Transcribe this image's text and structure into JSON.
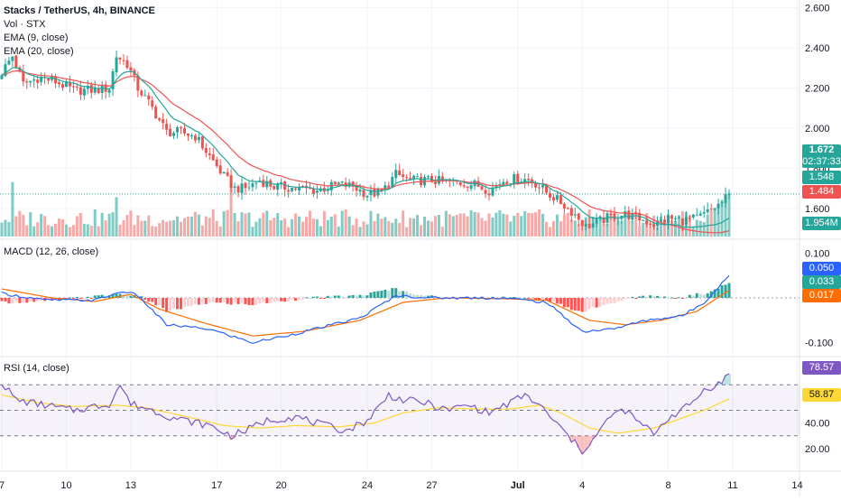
{
  "legend": {
    "symbol_line": "Stacks / TetherUS, 4h, BINANCE",
    "vol_label": "Vol · STX",
    "ema9_label": "EMA (9, close)",
    "ema20_label": "EMA (20, close)",
    "macd_label": "MACD (12, 26, close)",
    "rsi_label": "RSI (14, close)"
  },
  "badges": {
    "price": "1.672",
    "countdown": "02:37:33",
    "ema9": "1.548",
    "ema20": "1.484",
    "volume": "1.954M",
    "macd_line": "0.050",
    "macd_hist": "0.033",
    "macd_signal": "0.017",
    "rsi": "78.57",
    "rsi_ma": "58.87"
  },
  "colors": {
    "up": "#26a69a",
    "down": "#ef5350",
    "ema9": "#26a69a",
    "ema20": "#ef5350",
    "macd": "#2962ff",
    "signal": "#ff6d00",
    "rsi": "#7e57c2",
    "rsi_ma": "#fdd835",
    "volume_badge": "#26a69a"
  },
  "chart_data": [
    {
      "type": "candlestick",
      "title": "Stacks / TetherUS, 4h, BINANCE",
      "ylim": [
        1.46,
        2.63
      ],
      "y_ticks": [
        "2.600",
        "2.400",
        "2.200",
        "2.000",
        "1.800",
        "1.600"
      ],
      "x_ticks": [
        "7",
        "10",
        "13",
        "17",
        "20",
        "24",
        "27",
        "Jul",
        "4",
        "8",
        "11",
        "14"
      ],
      "current_price": 1.672,
      "anchors": [
        [
          0,
          2.28
        ],
        [
          3,
          2.36
        ],
        [
          6,
          2.22
        ],
        [
          10,
          2.25
        ],
        [
          14,
          2.24
        ],
        [
          20,
          2.19
        ],
        [
          26,
          2.19
        ],
        [
          30,
          2.2
        ],
        [
          32,
          2.36
        ],
        [
          35,
          2.32
        ],
        [
          38,
          2.2
        ],
        [
          42,
          2.1
        ],
        [
          46,
          1.98
        ],
        [
          50,
          1.98
        ],
        [
          54,
          1.96
        ],
        [
          58,
          1.86
        ],
        [
          62,
          1.76
        ],
        [
          65,
          1.7
        ],
        [
          68,
          1.7
        ],
        [
          72,
          1.74
        ],
        [
          76,
          1.71
        ],
        [
          82,
          1.7
        ],
        [
          88,
          1.69
        ],
        [
          94,
          1.72
        ],
        [
          98,
          1.71
        ],
        [
          102,
          1.67
        ],
        [
          106,
          1.68
        ],
        [
          110,
          1.77
        ],
        [
          114,
          1.74
        ],
        [
          120,
          1.74
        ],
        [
          126,
          1.73
        ],
        [
          132,
          1.72
        ],
        [
          136,
          1.69
        ],
        [
          140,
          1.74
        ],
        [
          144,
          1.75
        ],
        [
          148,
          1.74
        ],
        [
          152,
          1.68
        ],
        [
          156,
          1.63
        ],
        [
          160,
          1.57
        ],
        [
          163,
          1.51
        ],
        [
          166,
          1.53
        ],
        [
          170,
          1.56
        ],
        [
          174,
          1.57
        ],
        [
          178,
          1.55
        ],
        [
          182,
          1.52
        ],
        [
          186,
          1.55
        ],
        [
          190,
          1.54
        ],
        [
          194,
          1.55
        ],
        [
          198,
          1.59
        ],
        [
          201,
          1.63
        ],
        [
          203,
          1.672
        ]
      ],
      "ema9_last": 1.548,
      "ema20_last": 1.484
    },
    {
      "type": "bar",
      "title": "Vol · STX",
      "last_value": "1.954M",
      "spikes": [
        [
          3,
          0.9
        ],
        [
          32,
          0.65
        ],
        [
          64,
          0.95
        ]
      ]
    },
    {
      "type": "line",
      "title": "MACD (12, 26, close)",
      "ylim": [
        -0.125,
        0.125
      ],
      "y_ticks": [
        "0.100",
        "-0.100"
      ],
      "series": [
        {
          "name": "MACD",
          "anchors": [
            [
              0,
              0.01
            ],
            [
              12,
              -0.005
            ],
            [
              26,
              -0.005
            ],
            [
              34,
              0.015
            ],
            [
              38,
              0.005
            ],
            [
              46,
              -0.06
            ],
            [
              58,
              -0.07
            ],
            [
              70,
              -0.1
            ],
            [
              82,
              -0.08
            ],
            [
              100,
              -0.045
            ],
            [
              110,
              0.005
            ],
            [
              120,
              0.0
            ],
            [
              140,
              0.0
            ],
            [
              152,
              -0.01
            ],
            [
              162,
              -0.075
            ],
            [
              170,
              -0.07
            ],
            [
              180,
              -0.05
            ],
            [
              190,
              -0.04
            ],
            [
              196,
              -0.01
            ],
            [
              203,
              0.05
            ]
          ]
        },
        {
          "name": "Signal",
          "anchors": [
            [
              0,
              0.02
            ],
            [
              14,
              0.0
            ],
            [
              26,
              -0.008
            ],
            [
              36,
              0.008
            ],
            [
              44,
              -0.025
            ],
            [
              56,
              -0.055
            ],
            [
              70,
              -0.085
            ],
            [
              84,
              -0.075
            ],
            [
              100,
              -0.05
            ],
            [
              112,
              -0.01
            ],
            [
              124,
              0.0
            ],
            [
              140,
              -0.002
            ],
            [
              152,
              -0.005
            ],
            [
              164,
              -0.05
            ],
            [
              174,
              -0.06
            ],
            [
              184,
              -0.05
            ],
            [
              194,
              -0.03
            ],
            [
              203,
              0.017
            ]
          ]
        }
      ],
      "last_values": {
        "macd": 0.05,
        "histogram": 0.033,
        "signal": 0.017
      }
    },
    {
      "type": "line",
      "title": "RSI (14, close)",
      "ylim": [
        5,
        90
      ],
      "y_ticks": [
        "40.00",
        "20.00"
      ],
      "bands": [
        30,
        50,
        70
      ],
      "series": [
        {
          "name": "RSI",
          "anchors": [
            [
              0,
              72
            ],
            [
              4,
              58
            ],
            [
              10,
              55
            ],
            [
              20,
              50
            ],
            [
              30,
              55
            ],
            [
              33,
              70
            ],
            [
              36,
              55
            ],
            [
              40,
              52
            ],
            [
              48,
              44
            ],
            [
              58,
              38
            ],
            [
              64,
              30
            ],
            [
              68,
              34
            ],
            [
              74,
              42
            ],
            [
              82,
              45
            ],
            [
              90,
              38
            ],
            [
              96,
              34
            ],
            [
              102,
              42
            ],
            [
              108,
              62
            ],
            [
              112,
              58
            ],
            [
              118,
              56
            ],
            [
              124,
              50
            ],
            [
              130,
              54
            ],
            [
              136,
              48
            ],
            [
              142,
              56
            ],
            [
              146,
              62
            ],
            [
              150,
              54
            ],
            [
              154,
              42
            ],
            [
              158,
              30
            ],
            [
              162,
              18
            ],
            [
              166,
              30
            ],
            [
              170,
              46
            ],
            [
              174,
              50
            ],
            [
              178,
              40
            ],
            [
              182,
              32
            ],
            [
              186,
              44
            ],
            [
              192,
              54
            ],
            [
              196,
              66
            ],
            [
              201,
              72
            ],
            [
              203,
              78.57
            ]
          ]
        },
        {
          "name": "RSI-based MA",
          "anchors": [
            [
              0,
              62
            ],
            [
              10,
              56
            ],
            [
              20,
              53
            ],
            [
              32,
              54
            ],
            [
              40,
              52
            ],
            [
              50,
              46
            ],
            [
              62,
              38
            ],
            [
              72,
              36
            ],
            [
              82,
              38
            ],
            [
              94,
              37
            ],
            [
              104,
              40
            ],
            [
              112,
              48
            ],
            [
              122,
              52
            ],
            [
              132,
              51
            ],
            [
              142,
              51
            ],
            [
              150,
              54
            ],
            [
              156,
              48
            ],
            [
              164,
              36
            ],
            [
              172,
              32
            ],
            [
              182,
              36
            ],
            [
              190,
              44
            ],
            [
              196,
              50
            ],
            [
              203,
              58.87
            ]
          ]
        }
      ],
      "last_values": {
        "rsi": 78.57,
        "rsi_ma": 58.87
      }
    }
  ]
}
